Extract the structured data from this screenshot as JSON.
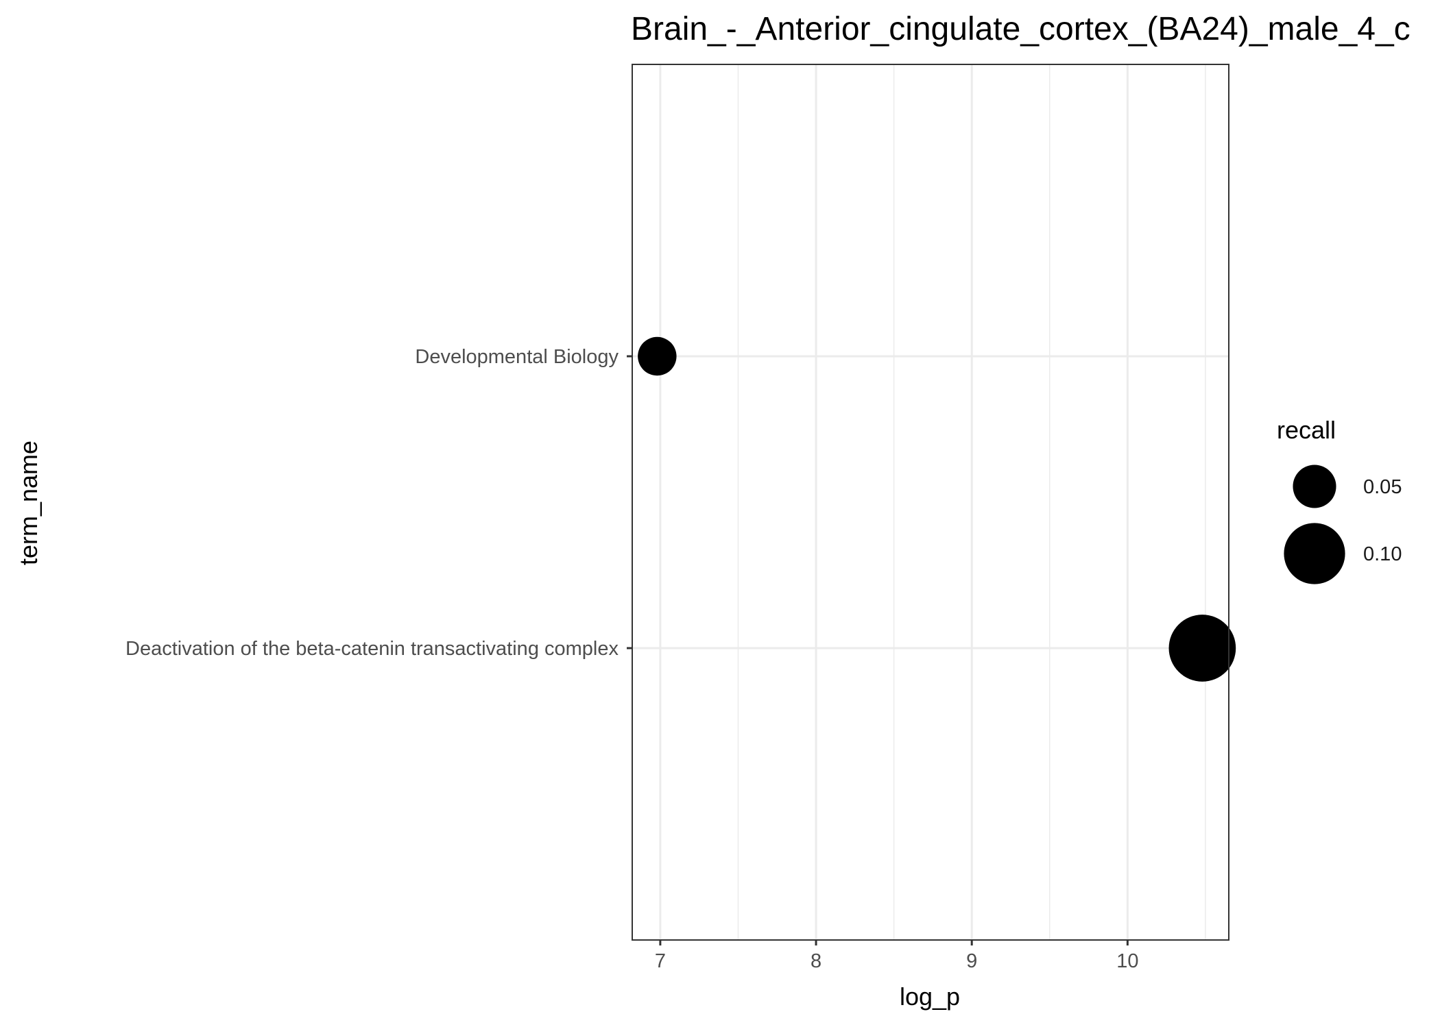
{
  "chart_data": {
    "type": "scatter",
    "title": "Brain_-_Anterior_cingulate_cortex_(BA24)_male_4_c",
    "xlabel": "log_p",
    "ylabel": "term_name",
    "xlim": [
      6.82,
      10.65
    ],
    "x_ticks": [
      7,
      8,
      9,
      10
    ],
    "x_tick_labels": [
      "7",
      "8",
      "9",
      "10"
    ],
    "categories": [
      "Developmental Biology",
      "Deactivation of the beta-catenin transactivating complex"
    ],
    "points": [
      {
        "term_name": "Developmental Biology",
        "log_p": 6.98,
        "recall": 0.04
      },
      {
        "term_name": "Deactivation of the beta-catenin transactivating complex",
        "log_p": 10.48,
        "recall": 0.12
      }
    ],
    "size_legend": {
      "title": "recall",
      "entries": [
        {
          "label": "0.05",
          "value": 0.05
        },
        {
          "label": "0.10",
          "value": 0.1
        }
      ]
    },
    "grid": true,
    "legend_position": "right",
    "colors": {
      "point": "#000000",
      "grid": "#ebebeb",
      "panel_border": "#333333"
    }
  }
}
